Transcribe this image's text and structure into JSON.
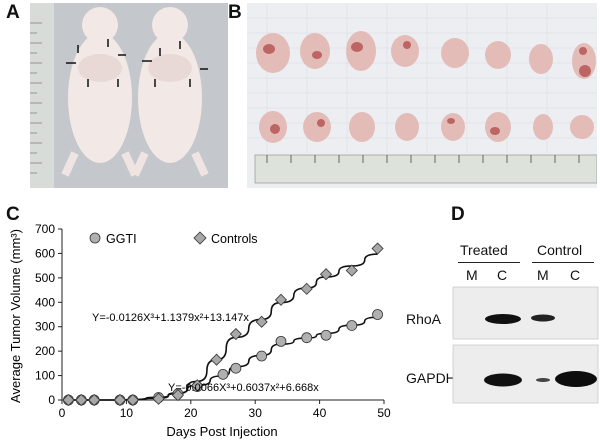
{
  "panels": {
    "a": "A",
    "b": "B",
    "c": "C",
    "d": "D"
  },
  "chart_data": {
    "type": "scatter",
    "title": "",
    "xlabel": "Days Post Injection",
    "ylabel": "Average Tumor Volume (mm³)",
    "xlim": [
      0,
      50
    ],
    "ylim": [
      0,
      700
    ],
    "xticks": [
      "0",
      "10",
      "20",
      "30",
      "40",
      "50"
    ],
    "yticks": [
      "0",
      "100",
      "200",
      "300",
      "400",
      "500",
      "600",
      "700"
    ],
    "grid": false,
    "legend": "top-left",
    "series": [
      {
        "name": "GGTI",
        "marker": "circle",
        "x": [
          1,
          3,
          5,
          9,
          11,
          15,
          18,
          21,
          25,
          27,
          31,
          34,
          38,
          41,
          45,
          49
        ],
        "y": [
          0,
          0,
          0,
          0,
          0,
          10,
          25,
          55,
          105,
          130,
          180,
          240,
          255,
          265,
          305,
          350
        ],
        "fit_equation": "Y=-0.0066X³+0.6037x²+6.668x"
      },
      {
        "name": "Controls",
        "marker": "diamond",
        "x": [
          1,
          3,
          5,
          9,
          11,
          15,
          18,
          21,
          24,
          27,
          31,
          34,
          38,
          41,
          45,
          49
        ],
        "y": [
          0,
          0,
          0,
          0,
          0,
          5,
          20,
          60,
          165,
          270,
          320,
          410,
          455,
          515,
          530,
          620
        ],
        "fit_equation": "Y=-0.0126X³+1.1379x²+13.147x"
      }
    ]
  },
  "blot": {
    "group_treated": "Treated",
    "group_control": "Control",
    "lanes": [
      "M",
      "C",
      "M",
      "C"
    ],
    "rows": [
      "RhoA",
      "GAPDH"
    ]
  },
  "colors": {
    "circle_fill": "#b0b0b0",
    "diamond_fill": "#a8a8a8",
    "blot_bg": "#ededed",
    "band": "#111111"
  }
}
